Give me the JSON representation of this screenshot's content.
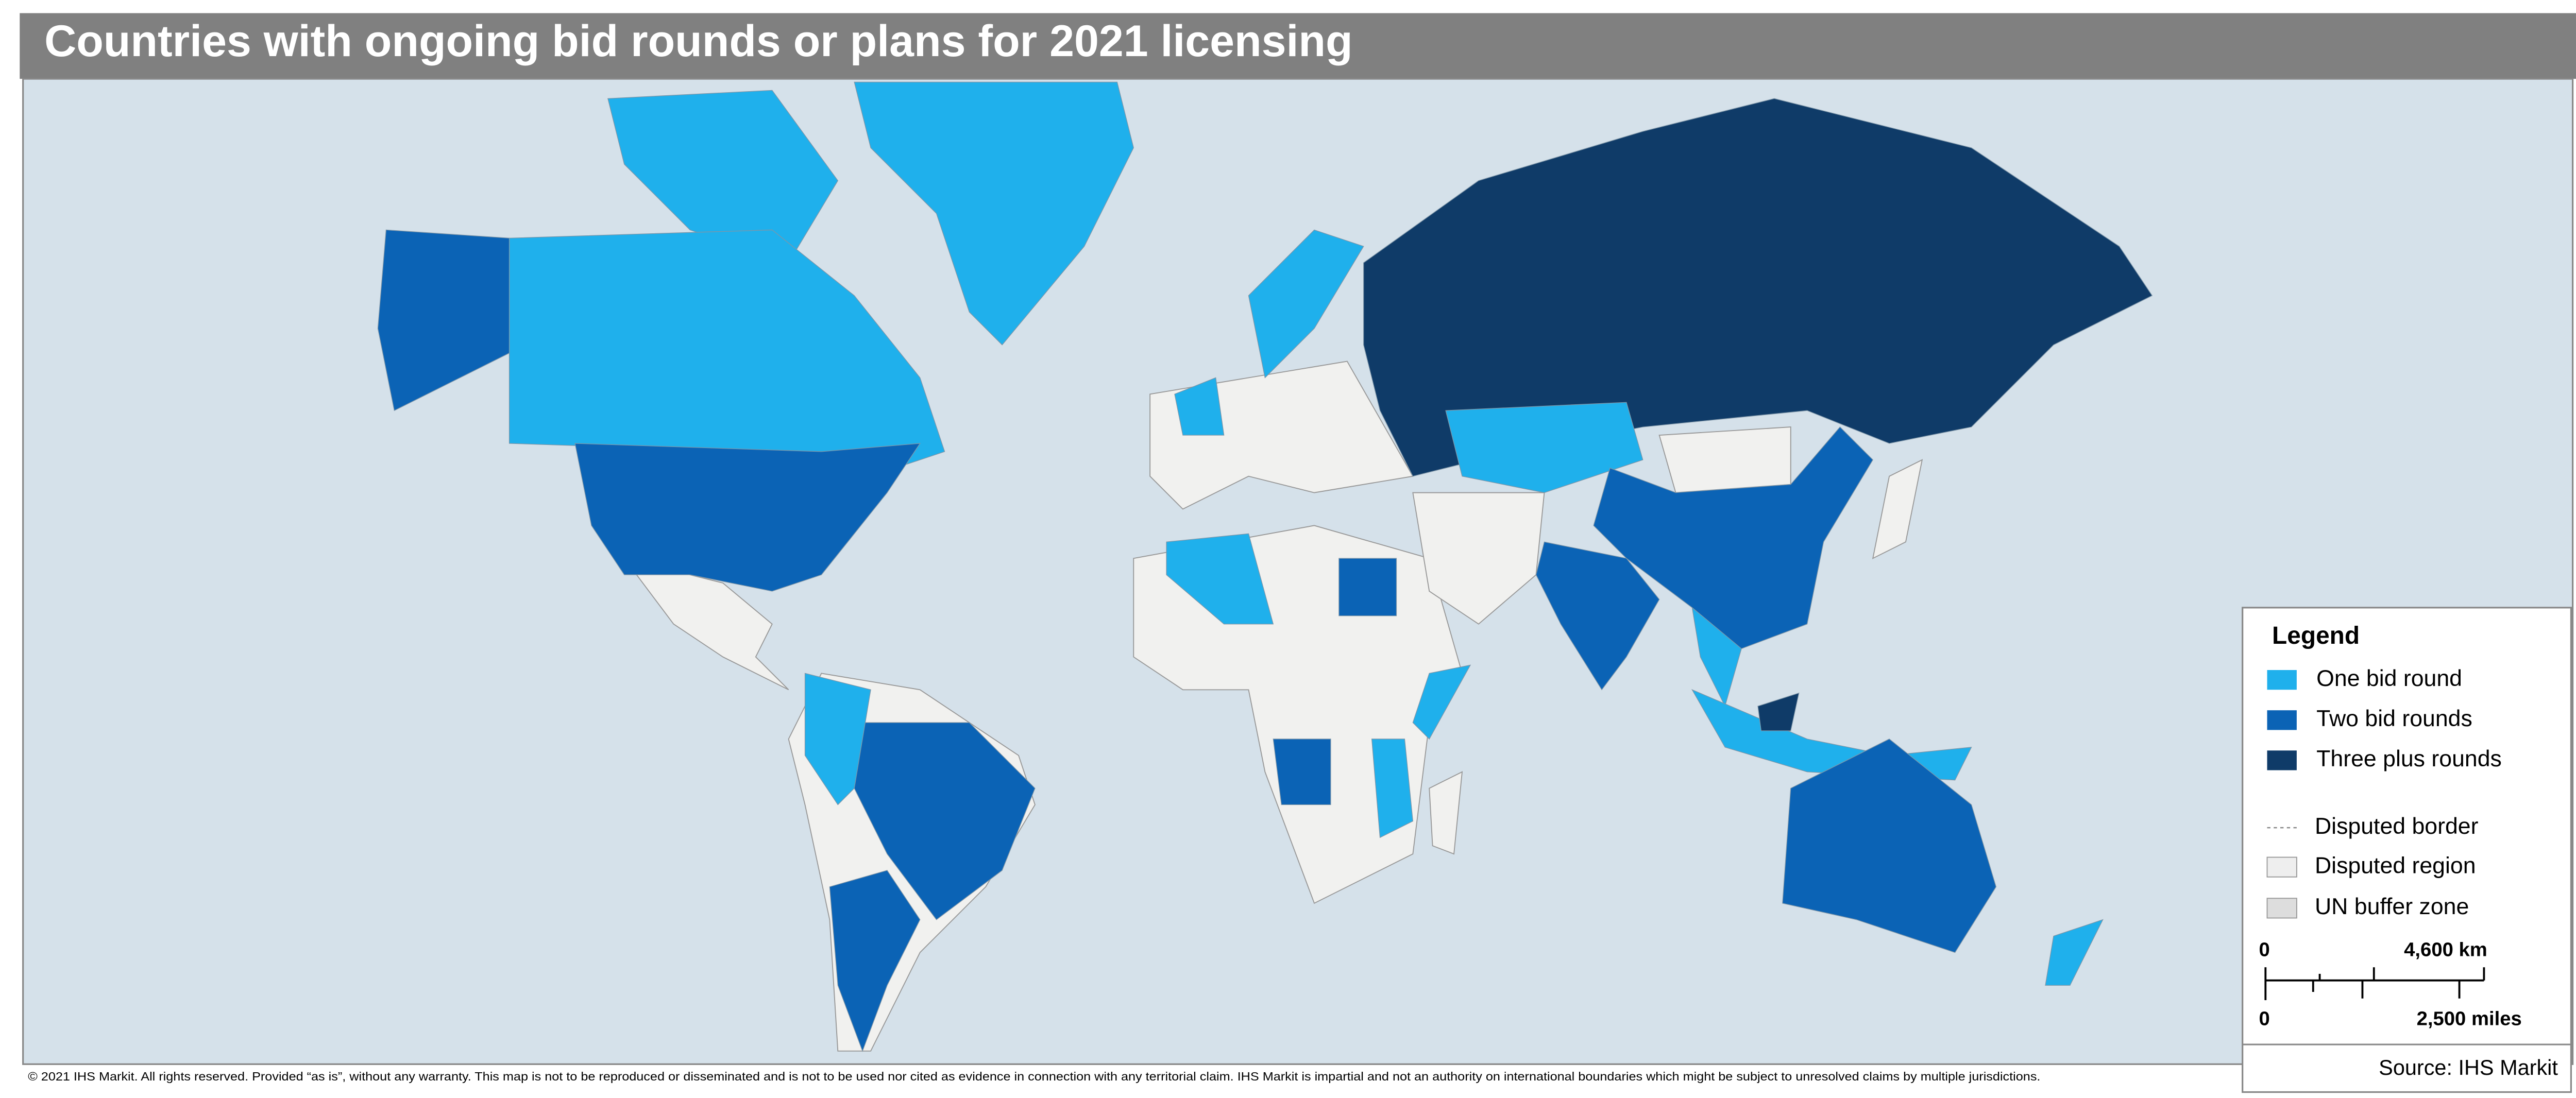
{
  "title": "Countries with ongoing bid rounds or plans for 2021 licensing",
  "legend": {
    "title": "Legend",
    "items": [
      {
        "name": "One bid round",
        "color": "#1fb0ec"
      },
      {
        "name": "Two bid rounds",
        "color": "#0b63b5"
      },
      {
        "name": "Three plus rounds",
        "color": "#0f3b68"
      }
    ],
    "other": [
      "Disputed border",
      "Disputed region",
      "UN buffer zone"
    ]
  },
  "scale_bar": {
    "km_start": "0",
    "km_end": "4,600 km",
    "mi_start": "0",
    "mi_end": "2,500 miles"
  },
  "footer": "© 2021 IHS Markit. All rights reserved. Provided “as is”, without any warranty. This map is not to be reproduced or disseminated and is not to be used nor cited as evidence in connection with any territorial claim. IHS Markit is impartial and not an authority on international boundaries which might be subject to unresolved claims by multiple jurisdictions.",
  "source": "Source: IHS Markit"
}
